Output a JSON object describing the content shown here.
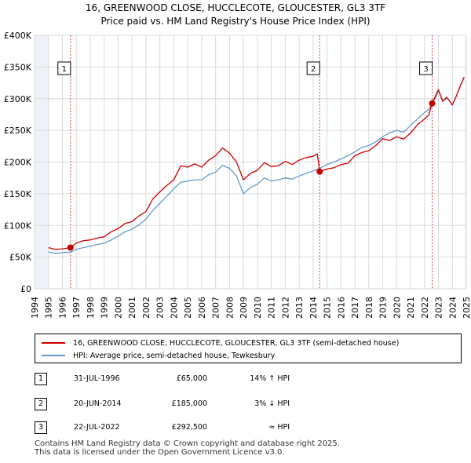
{
  "title": {
    "line1": "16, GREENWOOD CLOSE, HUCCLECOTE, GLOUCESTER, GL3 3TF",
    "line2": "Price paid vs. HM Land Registry's House Price Index (HPI)"
  },
  "colors": {
    "price": "#cc0000",
    "hpi": "#6699cc",
    "shade": "#eef2f8",
    "grid": "#d9d9d9",
    "marker_line": "#d44444"
  },
  "chart_data": {
    "type": "line",
    "title": "Price paid vs. HM Land Registry's House Price Index (HPI)",
    "xlabel": "",
    "ylabel": "",
    "xlim": [
      1994,
      2025
    ],
    "ylim": [
      0,
      400000
    ],
    "y_ticks": [
      0,
      50000,
      100000,
      150000,
      200000,
      250000,
      300000,
      350000,
      400000
    ],
    "y_tick_labels": [
      "£0",
      "£50K",
      "£100K",
      "£150K",
      "£200K",
      "£250K",
      "£300K",
      "£350K",
      "£400K"
    ],
    "x_ticks": [
      1994,
      1995,
      1996,
      1997,
      1998,
      1999,
      2000,
      2001,
      2002,
      2003,
      2004,
      2005,
      2006,
      2007,
      2008,
      2009,
      2010,
      2011,
      2012,
      2013,
      2014,
      2015,
      2016,
      2017,
      2018,
      2019,
      2020,
      2021,
      2022,
      2023,
      2024,
      2025
    ],
    "x_tick_labels": [
      "1994",
      "1995",
      "1996",
      "1997",
      "1998",
      "1999",
      "2000",
      "2001",
      "2002",
      "2003",
      "2004",
      "2005",
      "2006",
      "2007",
      "2008",
      "2009",
      "2010",
      "2011",
      "2012",
      "2013",
      "2014",
      "2015",
      "2016",
      "2017",
      "2018",
      "2019",
      "2020",
      "2021",
      "2022",
      "2023",
      "2024",
      "2025"
    ],
    "grid": true,
    "shaded_ranges": [
      [
        1994,
        1995.0
      ],
      [
        2024.9,
        2025
      ]
    ],
    "series": [
      {
        "name": "16, GREENWOOD CLOSE, HUCCLECOTE, GLOUCESTER, GL3 3TF (semi-detached house)",
        "x": [
          1995.0,
          1995.5,
          1996.0,
          1996.58,
          1997.0,
          1997.5,
          1998.0,
          1998.5,
          1999.0,
          1999.5,
          2000.0,
          2000.5,
          2001.0,
          2001.5,
          2002.0,
          2002.5,
          2003.0,
          2003.5,
          2004.0,
          2004.5,
          2005.0,
          2005.5,
          2006.0,
          2006.5,
          2007.0,
          2007.5,
          2008.0,
          2008.5,
          2009.0,
          2009.5,
          2010.0,
          2010.5,
          2011.0,
          2011.5,
          2012.0,
          2012.5,
          2013.0,
          2013.5,
          2014.0,
          2014.3,
          2014.47,
          2015.0,
          2015.5,
          2016.0,
          2016.5,
          2017.0,
          2017.5,
          2018.0,
          2018.5,
          2019.0,
          2019.5,
          2020.0,
          2020.5,
          2021.0,
          2021.5,
          2022.0,
          2022.3,
          2022.55,
          2022.8,
          2023.0,
          2023.3,
          2023.6,
          2024.0,
          2024.3,
          2024.6,
          2024.85
        ],
        "values": [
          65000,
          62000,
          63000,
          65000,
          72000,
          76000,
          77000,
          80000,
          82000,
          90000,
          95000,
          103000,
          106000,
          115000,
          122000,
          142000,
          153000,
          163000,
          172000,
          194000,
          192000,
          197000,
          192000,
          203000,
          210000,
          222000,
          214000,
          200000,
          172000,
          182000,
          187000,
          199000,
          193000,
          194000,
          201000,
          196000,
          203000,
          207000,
          209000,
          213000,
          185000,
          189000,
          191000,
          196000,
          198000,
          210000,
          215000,
          218000,
          226000,
          237000,
          234000,
          240000,
          236000,
          246000,
          259000,
          268000,
          274000,
          292500,
          305000,
          314000,
          296000,
          302000,
          290000,
          305000,
          322000,
          334000
        ]
      },
      {
        "name": "HPI: Average price, semi-detached house, Tewkesbury",
        "x": [
          1995.0,
          1995.5,
          1996.0,
          1996.58,
          1997.0,
          1997.5,
          1998.0,
          1998.5,
          1999.0,
          1999.5,
          2000.0,
          2000.5,
          2001.0,
          2001.5,
          2002.0,
          2002.5,
          2003.0,
          2003.5,
          2004.0,
          2004.5,
          2005.0,
          2005.5,
          2006.0,
          2006.5,
          2007.0,
          2007.5,
          2008.0,
          2008.5,
          2009.0,
          2009.5,
          2010.0,
          2010.5,
          2011.0,
          2011.5,
          2012.0,
          2012.5,
          2013.0,
          2013.5,
          2014.0,
          2014.47,
          2015.0,
          2015.5,
          2016.0,
          2016.5,
          2017.0,
          2017.5,
          2018.0,
          2018.5,
          2019.0,
          2019.5,
          2020.0,
          2020.5,
          2021.0,
          2021.5,
          2022.0,
          2022.3,
          2022.55,
          2022.8,
          2023.0,
          2023.3,
          2023.6,
          2024.0,
          2024.3,
          2024.6,
          2024.85
        ],
        "values": [
          58000,
          56000,
          57000,
          58000,
          62000,
          65000,
          67000,
          70000,
          72000,
          77000,
          83000,
          90000,
          94000,
          101000,
          110000,
          124000,
          135000,
          146000,
          158000,
          168000,
          170000,
          172000,
          172000,
          180000,
          184000,
          195000,
          190000,
          178000,
          150000,
          160000,
          165000,
          175000,
          170000,
          172000,
          175000,
          173000,
          178000,
          182000,
          186000,
          190000,
          196000,
          200000,
          205000,
          210000,
          216000,
          223000,
          226000,
          232000,
          240000,
          246000,
          250000,
          247000,
          258000,
          268000,
          278000,
          283000,
          292500,
          302000,
          313000,
          297000,
          302000,
          290000,
          305000,
          322000,
          334000
        ]
      }
    ],
    "sale_markers": [
      {
        "label": "1",
        "x": 1996.58,
        "value": 65000
      },
      {
        "label": "2",
        "x": 2014.47,
        "value": 185000
      },
      {
        "label": "3",
        "x": 2022.55,
        "value": 292500
      }
    ]
  },
  "legend": {
    "items": [
      "16, GREENWOOD CLOSE, HUCCLECOTE, GLOUCESTER, GL3 3TF (semi-detached house)",
      "HPI: Average price, semi-detached house, Tewkesbury"
    ]
  },
  "sales": [
    {
      "num": "1",
      "date": "31-JUL-1996",
      "price": "£65,000",
      "hpi": "14% ↑ HPI"
    },
    {
      "num": "2",
      "date": "20-JUN-2014",
      "price": "£185,000",
      "hpi": "3% ↓ HPI"
    },
    {
      "num": "3",
      "date": "22-JUL-2022",
      "price": "£292,500",
      "hpi": "≈ HPI"
    }
  ],
  "footer": {
    "line1": "Contains HM Land Registry data © Crown copyright and database right 2025.",
    "line2": "This data is licensed under the Open Government Licence v3.0."
  }
}
